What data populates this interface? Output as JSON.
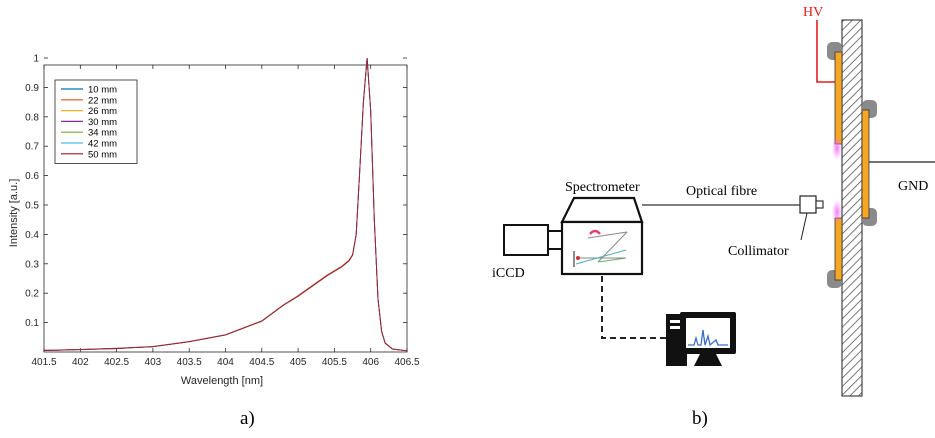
{
  "figure": {
    "caption_a": "a)",
    "caption_b": "b)"
  },
  "chart_data": {
    "type": "line",
    "xlabel": "Wavelength [nm]",
    "ylabel": "Intensity [a.u.]",
    "xlim": [
      401.5,
      406.5
    ],
    "ylim": [
      0,
      1
    ],
    "xticks": [
      401.5,
      402,
      402.5,
      403,
      403.5,
      404,
      404.5,
      405,
      405.5,
      406,
      406.5
    ],
    "xtick_labels": [
      "401.5",
      "402",
      "402.5",
      "403",
      "403.5",
      "404",
      "404.5",
      "405",
      "405.5",
      "406",
      "406.5"
    ],
    "yticks": [
      0.1,
      0.2,
      0.3,
      0.4,
      0.5,
      0.6,
      0.7,
      0.8,
      0.9,
      1
    ],
    "ytick_labels": [
      "0.1",
      "0.2",
      "0.3",
      "0.4",
      "0.5",
      "0.6",
      "0.7",
      "0.8",
      "0.9",
      "1"
    ],
    "grid": false,
    "legend_placement": "top-left",
    "x": [
      401.5,
      402.0,
      402.5,
      403.0,
      403.5,
      404.0,
      404.5,
      404.8,
      405.0,
      405.2,
      405.4,
      405.6,
      405.7,
      405.75,
      405.8,
      405.85,
      405.9,
      405.95,
      406.0,
      406.05,
      406.1,
      406.15,
      406.2,
      406.3,
      406.5
    ],
    "series": [
      {
        "name": "10 mm",
        "color": "#0072bd",
        "values": [
          0.005,
          0.008,
          0.012,
          0.018,
          0.035,
          0.058,
          0.105,
          0.16,
          0.19,
          0.225,
          0.26,
          0.29,
          0.31,
          0.33,
          0.4,
          0.62,
          0.85,
          1.0,
          0.82,
          0.45,
          0.18,
          0.07,
          0.03,
          0.01,
          0.004
        ]
      },
      {
        "name": "22 mm",
        "color": "#d95319",
        "values": [
          0.006,
          0.009,
          0.013,
          0.019,
          0.036,
          0.059,
          0.106,
          0.161,
          0.192,
          0.227,
          0.262,
          0.292,
          0.312,
          0.332,
          0.402,
          0.622,
          0.852,
          1.0,
          0.822,
          0.452,
          0.182,
          0.072,
          0.031,
          0.011,
          0.004
        ]
      },
      {
        "name": "26 mm",
        "color": "#edb120",
        "values": [
          0.005,
          0.008,
          0.012,
          0.018,
          0.035,
          0.058,
          0.104,
          0.159,
          0.189,
          0.224,
          0.259,
          0.289,
          0.309,
          0.329,
          0.399,
          0.619,
          0.849,
          1.0,
          0.819,
          0.449,
          0.179,
          0.069,
          0.029,
          0.01,
          0.004
        ]
      },
      {
        "name": "30 mm",
        "color": "#7e2f8e",
        "values": [
          0.005,
          0.008,
          0.012,
          0.018,
          0.035,
          0.058,
          0.105,
          0.16,
          0.19,
          0.225,
          0.26,
          0.29,
          0.31,
          0.33,
          0.4,
          0.62,
          0.85,
          1.0,
          0.82,
          0.45,
          0.18,
          0.07,
          0.03,
          0.01,
          0.004
        ]
      },
      {
        "name": "34 mm",
        "color": "#77ac30",
        "values": [
          0.005,
          0.008,
          0.012,
          0.018,
          0.035,
          0.058,
          0.105,
          0.16,
          0.19,
          0.225,
          0.26,
          0.29,
          0.31,
          0.33,
          0.4,
          0.62,
          0.85,
          1.0,
          0.82,
          0.45,
          0.18,
          0.07,
          0.03,
          0.01,
          0.004
        ]
      },
      {
        "name": "42 mm",
        "color": "#4dbeee",
        "values": [
          0.005,
          0.008,
          0.012,
          0.018,
          0.035,
          0.058,
          0.105,
          0.16,
          0.19,
          0.225,
          0.26,
          0.29,
          0.31,
          0.33,
          0.4,
          0.62,
          0.85,
          1.0,
          0.82,
          0.45,
          0.18,
          0.07,
          0.03,
          0.01,
          0.004
        ]
      },
      {
        "name": "50 mm",
        "color": "#a2142f",
        "values": [
          0.005,
          0.008,
          0.012,
          0.018,
          0.035,
          0.058,
          0.105,
          0.16,
          0.19,
          0.225,
          0.26,
          0.29,
          0.31,
          0.33,
          0.4,
          0.62,
          0.85,
          1.0,
          0.82,
          0.45,
          0.18,
          0.07,
          0.03,
          0.01,
          0.004
        ]
      }
    ]
  },
  "diagram": {
    "hv_label": "HV",
    "hv_color": "#e02020",
    "gnd_label": "GND",
    "spectrometer_label": "Spectrometer",
    "optical_fibre_label": "Optical fibre",
    "collimator_label": "Collimator",
    "iccd_label": "iCCD",
    "electrode_color": "#f5a623",
    "plasma_color": "#e868e8",
    "computer_icon": "computer-icon"
  }
}
